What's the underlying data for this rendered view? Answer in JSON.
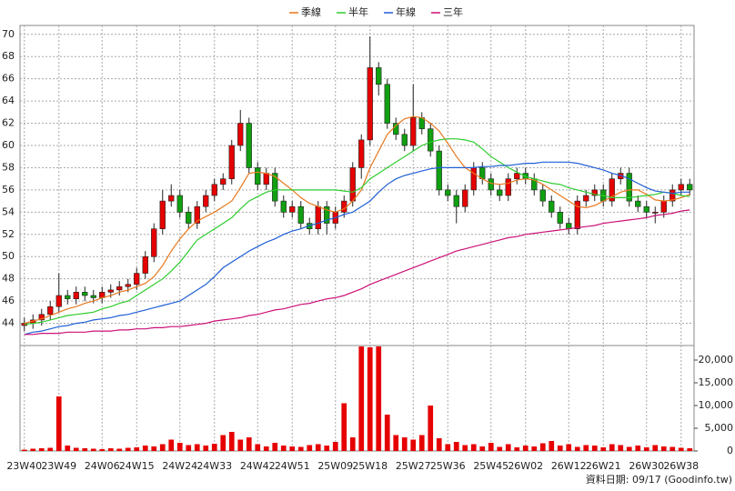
{
  "chart_data": {
    "type": "candlestick",
    "grid": true,
    "up_color": "#e60000",
    "down_color": "#10a010",
    "footer": "資料日期: 09/17  (Goodinfo.tw)",
    "categories": [
      "23W40",
      null,
      null,
      null,
      "23W49",
      null,
      null,
      null,
      null,
      "24W06",
      null,
      null,
      null,
      "24W15",
      null,
      null,
      null,
      null,
      "24W24",
      null,
      null,
      null,
      "24W33",
      null,
      null,
      null,
      null,
      "24W42",
      null,
      null,
      null,
      "24W51",
      null,
      null,
      null,
      null,
      "25W09",
      null,
      null,
      null,
      "25W18",
      null,
      null,
      null,
      null,
      "25W27",
      null,
      null,
      null,
      "25W36",
      null,
      null,
      null,
      null,
      "25W45",
      null,
      null,
      null,
      "26W02",
      null,
      null,
      null,
      null,
      "26W12",
      null,
      null,
      null,
      "26W21",
      null,
      null,
      null,
      null,
      "26W30",
      null,
      null,
      null,
      "26W38",
      null
    ],
    "open": [
      43.8,
      44.0,
      44.3,
      44.8,
      45.5,
      46.5,
      46.2,
      46.8,
      46.5,
      46.3,
      46.8,
      47.0,
      47.3,
      47.5,
      48.5,
      50.0,
      52.5,
      55.0,
      55.5,
      54.0,
      53.0,
      54.5,
      55.5,
      56.5,
      57.0,
      60.0,
      62.0,
      58.0,
      56.5,
      57.5,
      55.0,
      54.0,
      54.5,
      53.0,
      52.5,
      54.5,
      53.0,
      54.0,
      55.0,
      58.0,
      60.5,
      67.0,
      65.5,
      62.0,
      61.0,
      60.0,
      62.5,
      61.5,
      59.5,
      56.0,
      55.5,
      54.5,
      56.0,
      58.0,
      57.0,
      56.0,
      55.5,
      57.0,
      57.5,
      57.0,
      56.0,
      55.0,
      54.0,
      53.0,
      52.5,
      55.0,
      55.5,
      56.0,
      55.0,
      57.0,
      57.5,
      55.0,
      54.5,
      54.0,
      54.0,
      55.0,
      56.0,
      56.5
    ],
    "high": [
      44.5,
      44.8,
      45.3,
      46.0,
      48.5,
      47.0,
      47.3,
      47.3,
      47.0,
      47.3,
      47.5,
      47.8,
      48.0,
      49.0,
      50.5,
      53.0,
      56.0,
      56.5,
      56.0,
      54.5,
      55.0,
      56.0,
      57.0,
      57.5,
      60.5,
      63.2,
      62.5,
      58.5,
      58.0,
      58.0,
      55.5,
      55.0,
      55.0,
      53.5,
      55.0,
      55.0,
      54.5,
      55.5,
      58.5,
      61.0,
      69.8,
      67.5,
      66.0,
      62.5,
      61.5,
      65.5,
      63.0,
      62.0,
      60.0,
      56.5,
      56.0,
      56.5,
      58.5,
      58.5,
      57.5,
      56.5,
      57.5,
      58.0,
      58.0,
      57.5,
      56.5,
      55.5,
      54.5,
      53.5,
      55.5,
      56.0,
      56.5,
      56.5,
      57.5,
      58.0,
      58.0,
      55.5,
      55.0,
      54.5,
      55.5,
      56.5,
      57.0,
      57.0
    ],
    "low": [
      43.3,
      43.5,
      43.8,
      44.3,
      45.0,
      45.7,
      45.7,
      46.0,
      45.8,
      45.8,
      46.3,
      46.5,
      46.8,
      47.0,
      48.0,
      49.5,
      52.0,
      54.5,
      53.5,
      52.5,
      52.5,
      54.0,
      55.0,
      56.0,
      56.5,
      59.5,
      57.5,
      56.0,
      56.0,
      54.5,
      53.5,
      53.5,
      52.5,
      52.0,
      52.0,
      52.0,
      52.5,
      53.5,
      54.5,
      57.0,
      60.0,
      64.5,
      61.5,
      60.5,
      59.5,
      59.5,
      61.0,
      59.0,
      55.5,
      55.0,
      53.0,
      54.0,
      55.5,
      56.5,
      55.5,
      55.0,
      55.0,
      56.5,
      56.5,
      55.5,
      54.5,
      53.5,
      52.5,
      52.0,
      52.0,
      54.5,
      55.0,
      54.5,
      54.5,
      56.5,
      54.5,
      54.0,
      53.5,
      53.0,
      53.5,
      54.5,
      55.5,
      55.5
    ],
    "close": [
      44.0,
      44.3,
      44.8,
      45.5,
      46.5,
      46.2,
      46.8,
      46.5,
      46.3,
      46.8,
      47.0,
      47.3,
      47.5,
      48.5,
      50.0,
      52.5,
      55.0,
      55.5,
      54.0,
      53.0,
      54.5,
      55.5,
      56.5,
      57.0,
      60.0,
      62.0,
      58.0,
      56.5,
      57.5,
      55.0,
      54.0,
      54.5,
      53.0,
      52.5,
      54.5,
      53.0,
      54.0,
      55.0,
      58.0,
      60.5,
      67.0,
      65.5,
      62.0,
      61.0,
      60.0,
      62.5,
      61.5,
      59.5,
      56.0,
      55.5,
      54.5,
      56.0,
      58.0,
      57.0,
      56.0,
      55.5,
      57.0,
      57.5,
      57.0,
      56.0,
      55.0,
      54.0,
      53.0,
      52.5,
      55.0,
      55.5,
      56.0,
      55.0,
      57.0,
      57.5,
      55.0,
      54.5,
      54.0,
      54.0,
      55.0,
      56.0,
      56.5,
      56.0
    ],
    "ylim": [
      42.0,
      70.8
    ],
    "yticks": [
      44,
      46,
      48,
      50,
      52,
      54,
      56,
      58,
      60,
      62,
      64,
      66,
      68,
      70
    ],
    "series": [
      {
        "name": "季線",
        "color": "#e8781e",
        "values": [
          44.0,
          44.2,
          44.4,
          44.7,
          45.0,
          45.3,
          45.5,
          45.8,
          46.0,
          46.3,
          46.5,
          46.8,
          47.0,
          47.3,
          47.6,
          48.2,
          49.2,
          50.5,
          51.6,
          52.5,
          53.2,
          53.6,
          54.0,
          54.5,
          55.0,
          56.2,
          57.5,
          57.6,
          57.5,
          57.2,
          56.6,
          56.0,
          55.3,
          54.8,
          54.5,
          54.2,
          54.0,
          54.3,
          55.0,
          56.0,
          58.0,
          59.5,
          61.0,
          61.8,
          62.4,
          62.6,
          62.5,
          62.0,
          61.3,
          60.2,
          59.0,
          58.0,
          57.5,
          57.0,
          56.6,
          56.5,
          56.6,
          56.9,
          57.0,
          56.9,
          56.5,
          56.0,
          55.5,
          55.0,
          54.5,
          54.4,
          54.6,
          55.0,
          55.4,
          55.8,
          56.0,
          56.0,
          55.6,
          55.1,
          55.0,
          55.1,
          55.3,
          55.6
        ]
      },
      {
        "name": "半年",
        "color": "#2ecc2e",
        "values": [
          43.9,
          44.0,
          44.1,
          44.3,
          44.5,
          44.7,
          44.8,
          44.9,
          45.0,
          45.3,
          45.5,
          45.8,
          46.0,
          46.5,
          47.0,
          47.5,
          48.0,
          48.7,
          49.5,
          50.5,
          51.5,
          52.0,
          52.5,
          53.0,
          53.5,
          54.3,
          55.0,
          55.4,
          55.8,
          56.0,
          56.0,
          56.0,
          56.0,
          56.0,
          56.0,
          56.0,
          56.0,
          55.9,
          55.8,
          56.2,
          57.0,
          57.5,
          58.0,
          58.5,
          59.0,
          59.5,
          60.0,
          60.3,
          60.5,
          60.6,
          60.6,
          60.5,
          60.3,
          59.7,
          59.0,
          58.5,
          58.0,
          57.6,
          57.2,
          57.0,
          56.8,
          56.6,
          56.5,
          56.2,
          56.0,
          55.8,
          55.6,
          55.5,
          55.3,
          55.3,
          55.3,
          55.4,
          55.5,
          55.6,
          55.8,
          55.7,
          55.5,
          55.4
        ]
      },
      {
        "name": "年線",
        "color": "#1f5fd6",
        "values": [
          43.0,
          43.2,
          43.3,
          43.5,
          43.7,
          43.8,
          44.0,
          44.1,
          44.3,
          44.4,
          44.5,
          44.7,
          44.8,
          45.0,
          45.2,
          45.4,
          45.6,
          45.8,
          46.0,
          46.5,
          47.0,
          47.5,
          48.2,
          49.0,
          49.5,
          50.0,
          50.5,
          50.9,
          51.3,
          51.6,
          52.0,
          52.3,
          52.5,
          52.8,
          53.0,
          53.3,
          53.5,
          53.8,
          54.0,
          54.5,
          55.0,
          55.8,
          56.5,
          57.0,
          57.3,
          57.5,
          57.7,
          57.9,
          58.0,
          58.0,
          58.0,
          58.0,
          58.0,
          58.1,
          58.1,
          58.2,
          58.2,
          58.3,
          58.4,
          58.4,
          58.5,
          58.5,
          58.5,
          58.5,
          58.4,
          58.2,
          58.0,
          57.8,
          57.5,
          57.3,
          57.0,
          56.6,
          56.2,
          55.9,
          55.8,
          55.7,
          55.8,
          55.8
        ]
      },
      {
        "name": "三年",
        "color": "#cc1177",
        "values": [
          43.0,
          43.0,
          43.1,
          43.1,
          43.1,
          43.2,
          43.2,
          43.2,
          43.3,
          43.3,
          43.3,
          43.4,
          43.4,
          43.5,
          43.5,
          43.6,
          43.6,
          43.7,
          43.7,
          43.8,
          43.9,
          44.0,
          44.2,
          44.3,
          44.4,
          44.5,
          44.7,
          44.8,
          45.0,
          45.2,
          45.3,
          45.5,
          45.7,
          45.8,
          46.0,
          46.2,
          46.3,
          46.5,
          46.8,
          47.1,
          47.5,
          47.8,
          48.1,
          48.4,
          48.7,
          49.0,
          49.3,
          49.6,
          49.9,
          50.2,
          50.5,
          50.7,
          50.9,
          51.1,
          51.3,
          51.5,
          51.7,
          51.8,
          52.0,
          52.1,
          52.2,
          52.3,
          52.4,
          52.5,
          52.6,
          52.7,
          52.8,
          53.0,
          53.1,
          53.2,
          53.3,
          53.4,
          53.5,
          53.7,
          53.8,
          53.9,
          54.1,
          54.2
        ]
      }
    ],
    "volume": {
      "type": "bar",
      "color": "#e60000",
      "values": [
        300,
        500,
        600,
        700,
        12000,
        1200,
        700,
        600,
        500,
        400,
        600,
        500,
        700,
        800,
        1200,
        1000,
        1500,
        2500,
        1800,
        1300,
        1500,
        1200,
        1600,
        3500,
        4200,
        2500,
        3000,
        1500,
        1000,
        1800,
        1200,
        1000,
        900,
        1300,
        1500,
        1200,
        2000,
        10500,
        3000,
        23000,
        22800,
        23000,
        8000,
        3500,
        3000,
        2500,
        3500,
        10000,
        2800,
        1500,
        2000,
        1300,
        1500,
        1000,
        1800,
        900,
        1500,
        800,
        1200,
        1000,
        1700,
        2200,
        1200,
        1500,
        900,
        1300,
        1200,
        800,
        1500,
        1300,
        900,
        1200,
        800,
        1300,
        1000,
        900,
        700,
        600
      ],
      "ylim": [
        0,
        23200
      ],
      "yticks": [
        0,
        {
          "value": 5000,
          "label": "5,000"
        },
        {
          "value": 10000,
          "label": "10,000"
        },
        {
          "value": 15000,
          "label": "15,000"
        },
        {
          "value": 20000,
          "label": "20,000"
        }
      ]
    }
  }
}
